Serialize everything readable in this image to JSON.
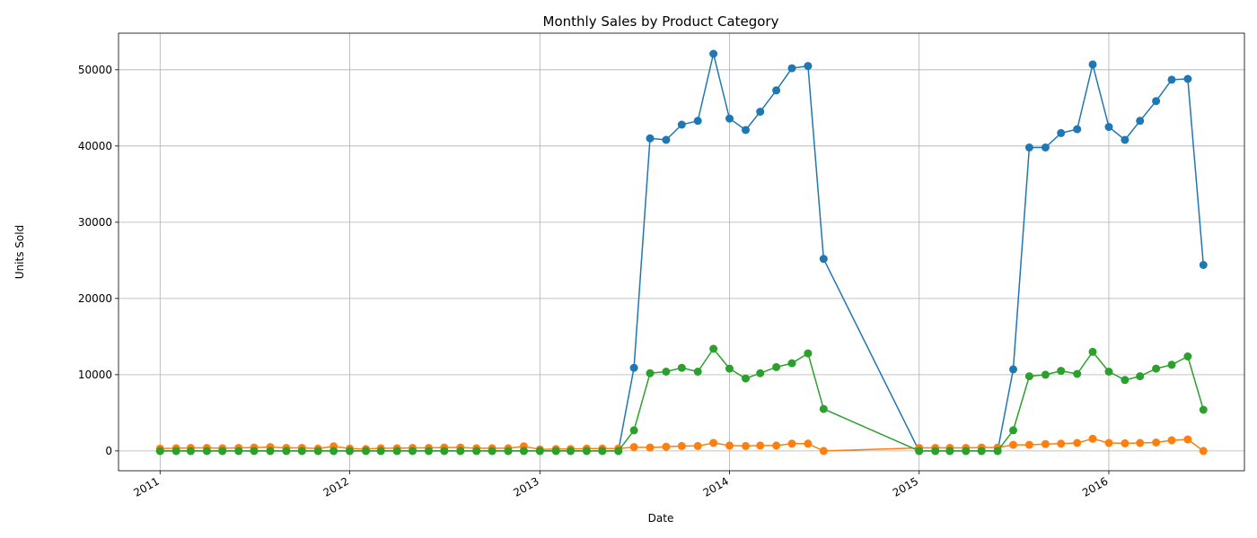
{
  "chart_data": {
    "type": "line",
    "title": "Monthly Sales by Product Category",
    "xlabel": "Date",
    "ylabel": "Units Sold",
    "grid": true,
    "legend": "none",
    "x_ticks": [
      "2011",
      "2012",
      "2013",
      "2014",
      "2015",
      "2016"
    ],
    "y_ticks": [
      "0",
      "10000",
      "20000",
      "30000",
      "40000",
      "50000"
    ],
    "xlim": [
      "2010-10-13",
      "2016-09-18"
    ],
    "ylim": [
      -2600,
      54800
    ],
    "colors": [
      "#1f77b4",
      "#ff7f0e",
      "#2ca02c"
    ],
    "x": [
      "2011-01-01",
      "2011-02-01",
      "2011-03-01",
      "2011-04-01",
      "2011-05-01",
      "2011-06-01",
      "2011-07-01",
      "2011-08-01",
      "2011-09-01",
      "2011-10-01",
      "2011-11-01",
      "2011-12-01",
      "2012-01-01",
      "2012-02-01",
      "2012-03-01",
      "2012-04-01",
      "2012-05-01",
      "2012-06-01",
      "2012-07-01",
      "2012-08-01",
      "2012-09-01",
      "2012-10-01",
      "2012-11-01",
      "2012-12-01",
      "2013-01-01",
      "2013-02-01",
      "2013-03-01",
      "2013-04-01",
      "2013-05-01",
      "2013-06-01",
      "2013-07-01",
      "2013-08-01",
      "2013-09-01",
      "2013-10-01",
      "2013-11-01",
      "2013-12-01",
      "2014-01-01",
      "2014-02-01",
      "2014-03-01",
      "2014-04-01",
      "2014-05-01",
      "2014-06-01",
      "2014-07-01",
      "2015-01-01",
      "2015-02-01",
      "2015-03-01",
      "2015-04-01",
      "2015-05-01",
      "2015-06-01",
      "2015-07-01",
      "2015-08-01",
      "2015-09-01",
      "2015-10-01",
      "2015-11-01",
      "2015-12-01",
      "2016-01-01",
      "2016-02-01",
      "2016-03-01",
      "2016-04-01",
      "2016-05-01",
      "2016-06-01",
      "2016-07-01"
    ],
    "series": [
      {
        "values": [
          0,
          0,
          0,
          0,
          0,
          0,
          0,
          0,
          0,
          0,
          0,
          0,
          0,
          0,
          0,
          0,
          0,
          0,
          0,
          0,
          0,
          0,
          0,
          0,
          0,
          0,
          0,
          0,
          0,
          0,
          10900,
          41000,
          40800,
          42800,
          43300,
          52100,
          43600,
          42100,
          44500,
          47300,
          50200,
          50500,
          25200,
          0,
          0,
          0,
          0,
          0,
          0,
          10700,
          39800,
          39800,
          41700,
          42200,
          50700,
          42500,
          40800,
          43300,
          45900,
          48700,
          48800,
          24400
        ]
      },
      {
        "values": [
          300,
          350,
          400,
          400,
          350,
          400,
          450,
          500,
          400,
          400,
          300,
          600,
          300,
          250,
          350,
          350,
          400,
          400,
          450,
          450,
          350,
          350,
          350,
          600,
          200,
          250,
          250,
          300,
          300,
          300,
          500,
          450,
          550,
          650,
          650,
          1050,
          700,
          650,
          700,
          700,
          950,
          950,
          0,
          400,
          400,
          400,
          400,
          450,
          450,
          800,
          800,
          900,
          950,
          1050,
          1600,
          1050,
          1000,
          1050,
          1100,
          1400,
          1500,
          0
        ]
      },
      {
        "values": [
          0,
          0,
          0,
          0,
          0,
          0,
          0,
          0,
          0,
          0,
          0,
          0,
          0,
          0,
          0,
          0,
          0,
          0,
          0,
          0,
          0,
          0,
          0,
          0,
          0,
          0,
          0,
          0,
          0,
          0,
          2700,
          10200,
          10400,
          10900,
          10400,
          13400,
          10800,
          9500,
          10200,
          11000,
          11500,
          12800,
          5500,
          0,
          0,
          0,
          0,
          0,
          0,
          2700,
          9800,
          10000,
          10500,
          10100,
          13000,
          10400,
          9300,
          9800,
          10800,
          11300,
          12400,
          5400
        ]
      }
    ]
  }
}
